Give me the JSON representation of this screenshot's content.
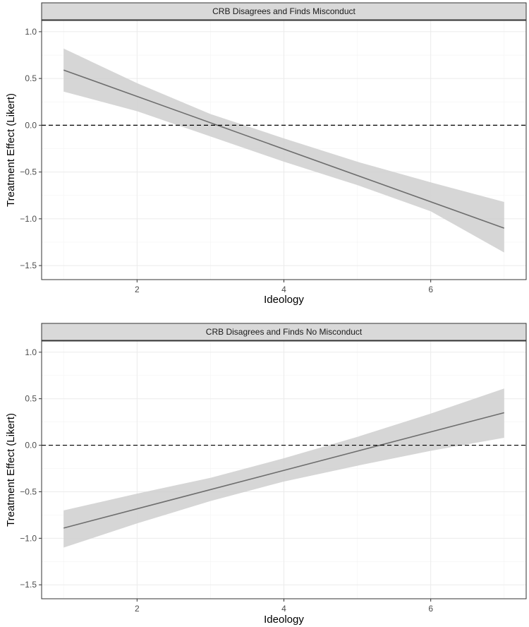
{
  "chart_data": [
    {
      "type": "line",
      "title": "CRB Disagrees and Finds Misconduct",
      "xlabel": "Ideology",
      "ylabel": "Treatment Effect (Likert)",
      "xlim": [
        0.7,
        7.3
      ],
      "ylim": [
        -1.65,
        1.12
      ],
      "x_ticks": [
        2,
        4,
        6
      ],
      "x_tick_labels": [
        "2",
        "4",
        "6"
      ],
      "y_ticks": [
        -1.5,
        -1.0,
        -0.5,
        0.0,
        0.5,
        1.0
      ],
      "y_tick_labels": [
        "−1.5",
        "−1.0",
        "−0.5",
        "0.0",
        "0.5",
        "1.0"
      ],
      "reference_line": {
        "y": 0,
        "style": "dashed"
      },
      "series": [
        {
          "name": "estimate",
          "x": [
            1,
            7
          ],
          "y": [
            0.59,
            -1.1
          ],
          "ci_x": [
            1,
            2,
            3,
            4,
            5,
            6,
            7
          ],
          "ci_lower": [
            0.36,
            0.15,
            -0.12,
            -0.39,
            -0.64,
            -0.92,
            -1.36
          ],
          "ci_upper": [
            0.82,
            0.45,
            0.12,
            -0.14,
            -0.39,
            -0.61,
            -0.82
          ]
        }
      ]
    },
    {
      "type": "line",
      "title": "CRB Disagrees and Finds No Misconduct",
      "xlabel": "Ideology",
      "ylabel": "Treatment Effect (Likert)",
      "xlim": [
        0.7,
        7.3
      ],
      "ylim": [
        -1.65,
        1.12
      ],
      "x_ticks": [
        2,
        4,
        6
      ],
      "x_tick_labels": [
        "2",
        "4",
        "6"
      ],
      "y_ticks": [
        -1.5,
        -1.0,
        -0.5,
        0.0,
        0.5,
        1.0
      ],
      "y_tick_labels": [
        "−1.5",
        "−1.0",
        "−0.5",
        "0.0",
        "0.5",
        "1.0"
      ],
      "reference_line": {
        "y": 0,
        "style": "dashed"
      },
      "series": [
        {
          "name": "estimate",
          "x": [
            1,
            7
          ],
          "y": [
            -0.89,
            0.35
          ],
          "ci_x": [
            1,
            2,
            3,
            4,
            5,
            6,
            7
          ],
          "ci_lower": [
            -1.1,
            -0.84,
            -0.6,
            -0.39,
            -0.22,
            -0.06,
            0.08
          ],
          "ci_upper": [
            -0.7,
            -0.52,
            -0.35,
            -0.14,
            0.09,
            0.34,
            0.61
          ]
        }
      ]
    }
  ]
}
